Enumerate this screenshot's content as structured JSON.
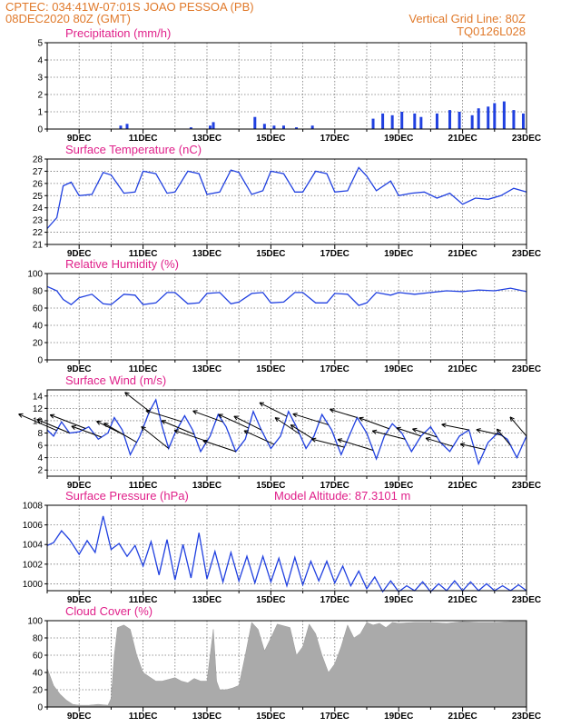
{
  "header": {
    "left_line1": "CPTEC:   034:41W-07:01S   JOAO PESSOA (PB)",
    "left_line2": "08DEC2020 80Z (GMT)",
    "right_line1": "Vertical Grid Line: 80Z",
    "right_line2": "TQ0126L028"
  },
  "colors": {
    "header": "#e0792a",
    "title": "#e0208a",
    "series": "#2040e0",
    "cloud": "#aaaaaa"
  },
  "x_axis": {
    "start_day": 8,
    "end_day": 23,
    "tick_labels": [
      "9DEC",
      "11DEC",
      "13DEC",
      "15DEC",
      "17DEC",
      "19DEC",
      "21DEC",
      "23DEC"
    ],
    "tick_days": [
      9,
      11,
      13,
      15,
      17,
      19,
      21,
      23
    ]
  },
  "chart_data": [
    {
      "type": "bar",
      "title": "Precipitation (mm/h)",
      "ylim": [
        0,
        5
      ],
      "yticks": [
        0,
        1,
        2,
        3,
        4,
        5
      ],
      "series_points": [
        [
          10.3,
          0.2
        ],
        [
          10.5,
          0.3
        ],
        [
          12.5,
          0.1
        ],
        [
          13.1,
          0.2
        ],
        [
          13.2,
          0.4
        ],
        [
          14.5,
          0.7
        ],
        [
          14.8,
          0.3
        ],
        [
          15.1,
          0.2
        ],
        [
          15.4,
          0.2
        ],
        [
          15.8,
          0.1
        ],
        [
          16.3,
          0.2
        ],
        [
          18.2,
          0.6
        ],
        [
          18.5,
          0.9
        ],
        [
          18.8,
          0.8
        ],
        [
          19.1,
          1.0
        ],
        [
          19.5,
          0.9
        ],
        [
          19.7,
          0.7
        ],
        [
          20.2,
          0.9
        ],
        [
          20.6,
          1.1
        ],
        [
          20.9,
          1.0
        ],
        [
          21.3,
          0.8
        ],
        [
          21.5,
          1.2
        ],
        [
          21.8,
          1.3
        ],
        [
          22.0,
          1.5
        ],
        [
          22.3,
          1.6
        ],
        [
          22.6,
          1.1
        ],
        [
          22.9,
          0.9
        ]
      ]
    },
    {
      "type": "line",
      "title": "Surface Temperature (nC)",
      "ylim": [
        21,
        28
      ],
      "yticks": [
        21,
        22,
        23,
        24,
        25,
        26,
        27,
        28
      ],
      "series": [
        {
          "x": [
            8.0,
            8.3,
            8.5,
            8.75,
            9.0,
            9.4,
            9.75,
            10.0,
            10.4,
            10.75,
            11.0,
            11.4,
            11.75,
            12.0,
            12.4,
            12.75,
            13.0,
            13.4,
            13.75,
            14.0,
            14.4,
            14.75,
            15.0,
            15.4,
            15.75,
            16.0,
            16.4,
            16.75,
            17.0,
            17.4,
            17.75,
            18.0,
            18.3,
            18.75,
            19.0,
            19.4,
            19.8,
            20.2,
            20.6,
            21.0,
            21.4,
            21.8,
            22.2,
            22.6,
            23.0
          ],
          "y": [
            22.3,
            23.2,
            25.8,
            26.1,
            25.0,
            25.1,
            26.9,
            26.7,
            25.2,
            25.3,
            27.0,
            26.8,
            25.2,
            25.3,
            27.0,
            26.8,
            25.1,
            25.3,
            27.1,
            26.9,
            25.1,
            25.4,
            27.0,
            26.8,
            25.3,
            25.3,
            27.0,
            26.8,
            25.3,
            25.4,
            27.3,
            26.6,
            25.4,
            26.2,
            25.0,
            25.2,
            25.3,
            24.8,
            25.2,
            24.3,
            24.8,
            24.7,
            25.0,
            25.6,
            25.3
          ]
        }
      ]
    },
    {
      "type": "line",
      "title": "Relative Humidity (%)",
      "ylim": [
        0,
        100
      ],
      "yticks": [
        0,
        20,
        40,
        60,
        80,
        100
      ],
      "series": [
        {
          "x": [
            8.0,
            8.3,
            8.5,
            8.75,
            9.0,
            9.4,
            9.75,
            10.0,
            10.4,
            10.75,
            11.0,
            11.4,
            11.75,
            12.0,
            12.4,
            12.75,
            13.0,
            13.4,
            13.75,
            14.0,
            14.4,
            14.75,
            15.0,
            15.4,
            15.75,
            16.0,
            16.4,
            16.75,
            17.0,
            17.4,
            17.75,
            18.0,
            18.3,
            18.75,
            19.0,
            19.5,
            20.0,
            20.5,
            21.0,
            21.5,
            22.0,
            22.5,
            23.0
          ],
          "y": [
            85,
            80,
            70,
            64,
            72,
            76,
            65,
            64,
            76,
            75,
            64,
            66,
            78,
            78,
            65,
            66,
            77,
            78,
            65,
            67,
            77,
            78,
            66,
            67,
            78,
            78,
            66,
            66,
            77,
            76,
            63,
            66,
            78,
            75,
            78,
            76,
            78,
            80,
            79,
            81,
            80,
            83,
            79
          ]
        }
      ]
    },
    {
      "type": "line",
      "title": "Surface Wind (m/s)",
      "ylim": [
        1,
        15
      ],
      "yticks": [
        2,
        4,
        6,
        8,
        10,
        12,
        14
      ],
      "series": [
        {
          "x": [
            8.0,
            8.2,
            8.45,
            8.7,
            9.0,
            9.3,
            9.6,
            9.9,
            10.1,
            10.35,
            10.6,
            10.9,
            11.2,
            11.4,
            11.6,
            11.8,
            12.0,
            12.3,
            12.55,
            12.8,
            13.1,
            13.35,
            13.6,
            13.9,
            14.2,
            14.45,
            14.7,
            15.0,
            15.3,
            15.55,
            15.8,
            16.1,
            16.35,
            16.6,
            16.9,
            17.2,
            17.45,
            17.7,
            18.0,
            18.3,
            18.55,
            18.8,
            19.1,
            19.4,
            19.7,
            20.0,
            20.3,
            20.6,
            20.9,
            21.2,
            21.5,
            21.8,
            22.1,
            22.4,
            22.7,
            23.0
          ],
          "y": [
            8.5,
            7.5,
            9.8,
            8.0,
            8.2,
            9.0,
            7.0,
            8.0,
            10.5,
            8.5,
            4.5,
            7.5,
            11.5,
            13.4,
            9.0,
            5.5,
            8.0,
            10.8,
            8.5,
            5.0,
            7.5,
            11.0,
            9.0,
            5.0,
            7.0,
            11.5,
            8.5,
            5.5,
            7.5,
            11.5,
            9.0,
            5.5,
            7.5,
            11.0,
            8.5,
            4.5,
            7.5,
            10.5,
            8.0,
            3.8,
            7.5,
            9.5,
            8.0,
            5.0,
            7.5,
            9.0,
            6.5,
            5.0,
            7.5,
            8.5,
            3.0,
            6.5,
            8.0,
            7.0,
            4.0,
            7.5
          ]
        }
      ],
      "vectors": [
        [
          8.3,
          -1.4,
          0.6
        ],
        [
          8.7,
          -1.2,
          0.5
        ],
        [
          9.2,
          -1.3,
          0.5
        ],
        [
          9.7,
          -1.1,
          0.4
        ],
        [
          10.4,
          -1.0,
          0.5
        ],
        [
          10.8,
          -1.2,
          0.7
        ],
        [
          11.2,
          -0.9,
          0.7
        ],
        [
          11.8,
          -1.0,
          0.8
        ],
        [
          12.2,
          -1.3,
          0.4
        ],
        [
          12.6,
          -1.2,
          0.5
        ],
        [
          13.0,
          -1.2,
          0.4
        ],
        [
          13.5,
          -1.1,
          0.4
        ],
        [
          13.9,
          -1.2,
          0.4
        ],
        [
          14.3,
          -1.1,
          0.5
        ],
        [
          14.7,
          -1.0,
          0.5
        ],
        [
          15.1,
          -1.1,
          0.5
        ],
        [
          15.5,
          -1.0,
          0.5
        ],
        [
          15.9,
          -0.9,
          0.6
        ],
        [
          16.3,
          -0.8,
          0.5
        ],
        [
          16.8,
          -1.3,
          0.4
        ],
        [
          17.3,
          -1.2,
          0.3
        ],
        [
          17.7,
          -1.0,
          0.3
        ],
        [
          18.2,
          -1.3,
          0.4
        ],
        [
          18.7,
          -1.1,
          0.4
        ],
        [
          19.2,
          -1.2,
          0.3
        ],
        [
          19.7,
          -0.9,
          0.3
        ],
        [
          20.2,
          -0.9,
          0.3
        ],
        [
          20.7,
          -1.0,
          0.3
        ],
        [
          21.2,
          -1.0,
          0.2
        ],
        [
          21.7,
          -0.9,
          0.2
        ],
        [
          22.2,
          -0.9,
          0.2
        ],
        [
          22.5,
          -0.5,
          0.6
        ],
        [
          23.0,
          -0.6,
          0.7
        ]
      ]
    },
    {
      "type": "line",
      "title": "Surface Pressure (hPa)",
      "annotation": "Model Altitude: 87.3101 m",
      "ylim": [
        999.3,
        1008
      ],
      "yticks": [
        1000,
        1002,
        1004,
        1006,
        1008
      ],
      "series": [
        {
          "x": [
            8.0,
            8.2,
            8.45,
            8.7,
            9.0,
            9.25,
            9.5,
            9.75,
            10.0,
            10.25,
            10.5,
            10.75,
            11.0,
            11.25,
            11.5,
            11.75,
            12.0,
            12.25,
            12.5,
            12.75,
            13.0,
            13.25,
            13.5,
            13.75,
            14.0,
            14.25,
            14.5,
            14.75,
            15.0,
            15.25,
            15.5,
            15.75,
            16.0,
            16.25,
            16.5,
            16.75,
            17.0,
            17.25,
            17.5,
            17.75,
            18.0,
            18.25,
            18.5,
            18.75,
            19.0,
            19.25,
            19.5,
            19.75,
            20.0,
            20.25,
            20.5,
            20.75,
            21.0,
            21.25,
            21.5,
            21.75,
            22.0,
            22.25,
            22.5,
            22.75,
            23.0
          ],
          "y": [
            1003.9,
            1004.2,
            1005.4,
            1004.5,
            1003.0,
            1004.4,
            1003.2,
            1006.9,
            1003.5,
            1004.1,
            1002.8,
            1003.9,
            1001.8,
            1004.3,
            1000.9,
            1004.5,
            1000.4,
            1004.0,
            1000.6,
            1005.2,
            1000.5,
            1003.3,
            1000.2,
            1003.2,
            1000.3,
            1002.8,
            1000.1,
            1002.8,
            1000.2,
            1002.6,
            999.8,
            1002.7,
            999.9,
            1002.3,
            1000.3,
            1002.3,
            1000.1,
            1001.8,
            999.8,
            1001.3,
            999.5,
            1000.7,
            999.2,
            1000.3,
            999.2,
            999.8,
            999.3,
            1000.2,
            999.2,
            1000.0,
            999.3,
            1000.3,
            999.3,
            1000.2,
            999.3,
            1000.0,
            999.3,
            999.8,
            999.3,
            999.9,
            999.3
          ]
        }
      ]
    },
    {
      "type": "area",
      "title": "Cloud Cover (%)",
      "ylim": [
        0,
        100
      ],
      "yticks": [
        0,
        20,
        40,
        60,
        80,
        100
      ],
      "series": [
        {
          "x": [
            8.0,
            8.2,
            8.4,
            8.6,
            8.8,
            9.0,
            9.3,
            9.6,
            9.9,
            10.0,
            10.1,
            10.2,
            10.4,
            10.6,
            10.8,
            11.0,
            11.2,
            11.4,
            11.6,
            11.8,
            12.0,
            12.2,
            12.4,
            12.6,
            12.8,
            13.0,
            13.1,
            13.2,
            13.3,
            13.4,
            13.6,
            13.8,
            14.0,
            14.2,
            14.4,
            14.6,
            14.8,
            15.0,
            15.2,
            15.4,
            15.6,
            15.8,
            16.0,
            16.2,
            16.4,
            16.6,
            16.8,
            17.0,
            17.2,
            17.4,
            17.6,
            17.8,
            18.0,
            18.2,
            18.4,
            18.6,
            18.8,
            19.0,
            19.5,
            20.0,
            20.5,
            21.0,
            21.5,
            22.0,
            22.5,
            23.0
          ],
          "y": [
            45,
            25,
            15,
            8,
            3,
            2,
            2,
            3,
            2,
            10,
            60,
            92,
            95,
            90,
            60,
            40,
            35,
            30,
            30,
            32,
            34,
            30,
            28,
            33,
            30,
            30,
            60,
            90,
            30,
            20,
            20,
            22,
            25,
            60,
            98,
            90,
            65,
            80,
            96,
            94,
            92,
            60,
            70,
            96,
            85,
            60,
            40,
            50,
            70,
            95,
            80,
            85,
            98,
            95,
            97,
            92,
            98,
            97,
            98,
            98,
            97,
            99,
            98,
            98,
            99,
            99
          ]
        }
      ]
    }
  ]
}
